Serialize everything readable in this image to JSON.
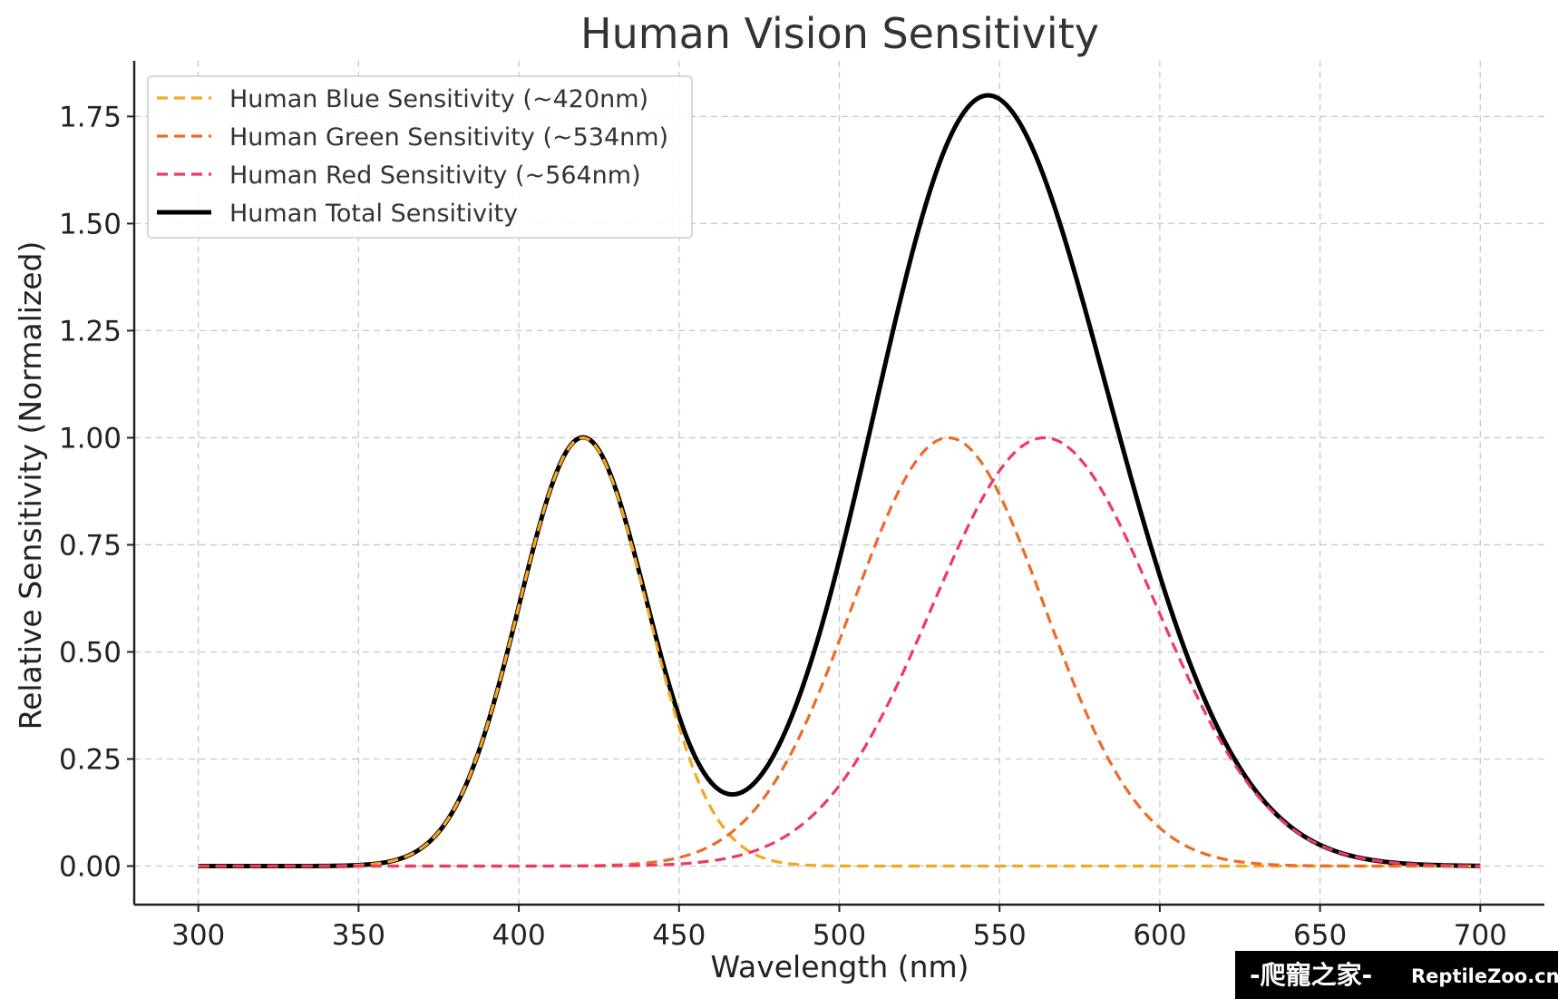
{
  "chart_data": {
    "type": "line",
    "title": "Human Vision Sensitivity",
    "xlabel": "Wavelength (nm)",
    "ylabel": "Relative Sensitivity (Normalized)",
    "xlim": [
      280,
      720
    ],
    "ylim": [
      -0.09,
      1.88
    ],
    "xticks": [
      300,
      350,
      400,
      450,
      500,
      550,
      600,
      650,
      700
    ],
    "xtick_labels": [
      "300",
      "350",
      "400",
      "450",
      "500",
      "550",
      "600",
      "650",
      "700"
    ],
    "yticks": [
      0,
      0.25,
      0.5,
      0.75,
      1.0,
      1.25,
      1.5,
      1.75
    ],
    "ytick_labels": [
      "0.00",
      "0.25",
      "0.50",
      "0.75",
      "1.00",
      "1.25",
      "1.50",
      "1.75"
    ],
    "grid": true,
    "legend_position": "top-left",
    "series": [
      {
        "name": "Human Blue Sensitivity (~420nm)",
        "color": "#F5A623",
        "style": "dashed",
        "peak_wavelength": 420,
        "peak_value": 1.0,
        "sigma": 20,
        "x": [
          300,
          340,
          360,
          380,
          400,
          410,
          420,
          430,
          440,
          450,
          460,
          470,
          480,
          500,
          550,
          600,
          700
        ],
        "y": [
          0.0,
          0.0,
          0.01,
          0.14,
          0.61,
          0.88,
          1.0,
          0.88,
          0.61,
          0.32,
          0.14,
          0.04,
          0.01,
          0.0,
          0.0,
          0.0,
          0.0
        ]
      },
      {
        "name": "Human Green Sensitivity (~534nm)",
        "color": "#EE6A2A",
        "style": "dashed",
        "peak_wavelength": 534,
        "peak_value": 1.0,
        "sigma": 30,
        "x": [
          300,
          440,
          460,
          480,
          500,
          520,
          534,
          550,
          570,
          590,
          610,
          630,
          650,
          700
        ],
        "y": [
          0.0,
          0.01,
          0.05,
          0.2,
          0.53,
          0.9,
          1.0,
          0.87,
          0.49,
          0.18,
          0.04,
          0.01,
          0.0,
          0.0
        ]
      },
      {
        "name": "Human Red Sensitivity (~564nm)",
        "color": "#EE3A62",
        "style": "dashed",
        "peak_wavelength": 564,
        "peak_value": 1.0,
        "sigma": 35,
        "x": [
          300,
          460,
          480,
          500,
          520,
          540,
          564,
          580,
          600,
          620,
          640,
          660,
          680,
          700
        ],
        "y": [
          0.0,
          0.01,
          0.06,
          0.19,
          0.45,
          0.79,
          1.0,
          0.9,
          0.59,
          0.28,
          0.09,
          0.02,
          0.0,
          0.0
        ]
      },
      {
        "name": "Human Total Sensitivity",
        "color": "#000000",
        "style": "solid",
        "x": [
          300,
          350,
          380,
          400,
          420,
          440,
          460,
          469,
          480,
          500,
          520,
          545,
          560,
          580,
          600,
          620,
          650,
          700
        ],
        "y": [
          0.0,
          0.01,
          0.14,
          0.61,
          1.0,
          0.61,
          0.24,
          0.17,
          0.27,
          0.72,
          1.36,
          1.79,
          1.67,
          1.12,
          0.63,
          0.32,
          0.09,
          0.0
        ]
      }
    ]
  },
  "watermark": {
    "text_cn": "-爬寵之家-",
    "text_en": "ReptileZoo.cn"
  }
}
